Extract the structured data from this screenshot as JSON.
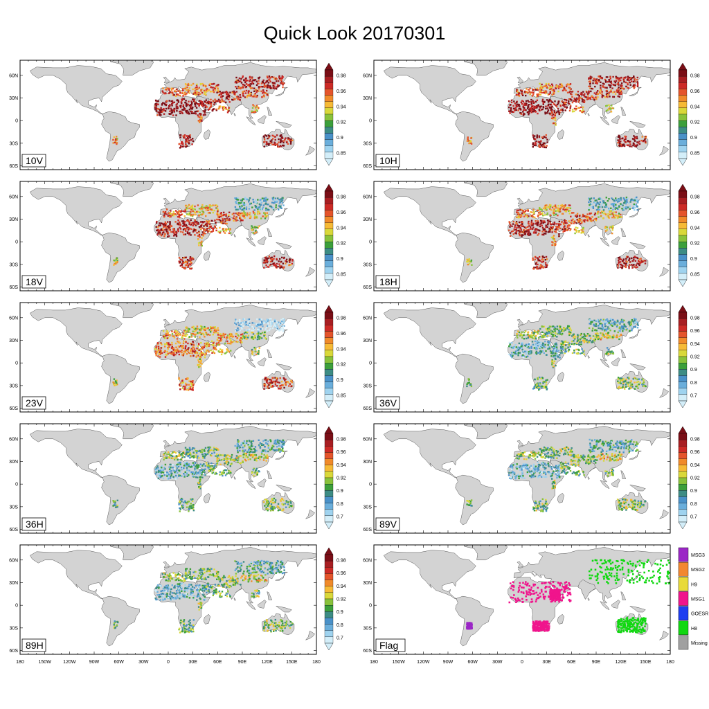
{
  "title": "Quick Look 20170301",
  "lat_ticks": [
    "60N",
    "30N",
    "0",
    "30S",
    "60S"
  ],
  "lon_ticks": [
    "180",
    "150W",
    "120W",
    "90W",
    "60W",
    "30W",
    "0",
    "30E",
    "60E",
    "90E",
    "120E",
    "150E",
    "180"
  ],
  "colors": {
    "land": "#d3d3d3",
    "scale_085": [
      "#d3eef9",
      "#9fd3ef",
      "#6aaedb",
      "#4a91c8",
      "#3d8c84",
      "#3c9f3b",
      "#89c23b",
      "#d9d83a",
      "#f6ba36",
      "#f08a2a",
      "#e4542b",
      "#cc2a26",
      "#a81e22",
      "#7a0e16"
    ],
    "scale_07": [
      "#d3eef9",
      "#9fd3ef",
      "#6aaedb",
      "#4a91c8",
      "#3d8c84",
      "#3c9f3b",
      "#89c23b",
      "#d9d83a",
      "#f6ba36",
      "#f08a2a",
      "#e4542b",
      "#cc2a26",
      "#a81e22",
      "#7a0e16"
    ],
    "flag": [
      "#9b27c6",
      "#f28730",
      "#e8da3a",
      "#f0148c",
      "#1f3df0",
      "#11d811",
      "#a0a0a0"
    ]
  },
  "panels": [
    {
      "label": "10V",
      "scale": "085",
      "ticks": [
        "0.98",
        "0.96",
        "0.94",
        "0.92",
        "0.9",
        "0.85"
      ],
      "theme": "hot"
    },
    {
      "label": "10H",
      "scale": "085",
      "ticks": [
        "0.98",
        "0.96",
        "0.94",
        "0.92",
        "0.9",
        "0.85"
      ],
      "theme": "hot"
    },
    {
      "label": "18V",
      "scale": "085",
      "ticks": [
        "0.98",
        "0.96",
        "0.94",
        "0.92",
        "0.9",
        "0.85"
      ],
      "theme": "warm"
    },
    {
      "label": "18H",
      "scale": "085",
      "ticks": [
        "0.98",
        "0.96",
        "0.94",
        "0.92",
        "0.9",
        "0.85"
      ],
      "theme": "warm"
    },
    {
      "label": "23V",
      "scale": "085",
      "ticks": [
        "0.98",
        "0.96",
        "0.94",
        "0.92",
        "0.9",
        "0.85"
      ],
      "theme": "mixed"
    },
    {
      "label": "36V",
      "scale": "07",
      "ticks": [
        "0.98",
        "0.96",
        "0.94",
        "0.92",
        "0.9",
        "0.8",
        "0.7"
      ],
      "theme": "cool"
    },
    {
      "label": "36H",
      "scale": "07",
      "ticks": [
        "0.98",
        "0.96",
        "0.94",
        "0.92",
        "0.9",
        "0.8",
        "0.7"
      ],
      "theme": "cool"
    },
    {
      "label": "89V",
      "scale": "07",
      "ticks": [
        "0.98",
        "0.96",
        "0.94",
        "0.92",
        "0.9",
        "0.8",
        "0.7"
      ],
      "theme": "cool"
    },
    {
      "label": "89H",
      "scale": "07",
      "ticks": [
        "0.98",
        "0.96",
        "0.94",
        "0.92",
        "0.9",
        "0.8",
        "0.7"
      ],
      "theme": "cool"
    },
    {
      "label": "Flag",
      "scale": "flag",
      "ticks": [
        "MSG3",
        "MSG2",
        "H9",
        "MSG1",
        "GOESR",
        "H8",
        "Missing"
      ],
      "theme": "flag"
    }
  ]
}
